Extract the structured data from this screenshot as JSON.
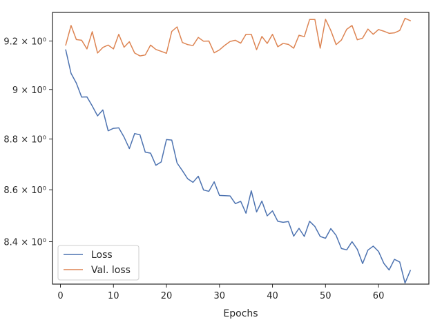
{
  "chart_data": {
    "type": "line",
    "title": "",
    "xlabel": "Epochs",
    "ylabel": "",
    "yscale": "log",
    "xlim": [
      -1.5,
      69.5
    ],
    "ylim": [
      8.24,
      9.32
    ],
    "grid": false,
    "legend_position": "lower-left",
    "x_ticks": [
      0,
      10,
      20,
      30,
      40,
      50,
      60
    ],
    "x_tick_labels": [
      "0",
      "10",
      "20",
      "30",
      "40",
      "50",
      "60"
    ],
    "y_ticks": [
      8.4,
      8.6,
      8.8,
      9.0,
      9.2
    ],
    "y_tick_labels": [
      "8.4 × 10⁰",
      "8.6 × 10⁰",
      "8.8 × 10⁰",
      "9 × 10⁰",
      "9.2 × 10⁰"
    ],
    "x": [
      1,
      2,
      3,
      4,
      5,
      6,
      7,
      8,
      9,
      10,
      11,
      12,
      13,
      14,
      15,
      16,
      17,
      18,
      19,
      20,
      21,
      22,
      23,
      24,
      25,
      26,
      27,
      28,
      29,
      30,
      31,
      32,
      33,
      34,
      35,
      36,
      37,
      38,
      39,
      40,
      41,
      42,
      43,
      44,
      45,
      46,
      47,
      48,
      49,
      50,
      51,
      52,
      53,
      54,
      55,
      56,
      57,
      58,
      59,
      60,
      61,
      62,
      63,
      64,
      65,
      66
    ],
    "series": [
      {
        "name": "Loss",
        "color": "#4c72b0",
        "values": [
          9.163,
          9.066,
          9.026,
          8.969,
          8.97,
          8.933,
          8.893,
          8.917,
          8.833,
          8.843,
          8.845,
          8.808,
          8.762,
          8.822,
          8.817,
          8.748,
          8.744,
          8.696,
          8.709,
          8.798,
          8.796,
          8.705,
          8.675,
          8.643,
          8.629,
          8.653,
          8.599,
          8.594,
          8.631,
          8.578,
          8.577,
          8.576,
          8.546,
          8.555,
          8.509,
          8.596,
          8.514,
          8.556,
          8.499,
          8.518,
          8.478,
          8.474,
          8.477,
          8.421,
          8.451,
          8.42,
          8.478,
          8.458,
          8.42,
          8.413,
          8.45,
          8.424,
          8.374,
          8.369,
          8.4,
          8.371,
          8.317,
          8.368,
          8.383,
          8.363,
          8.318,
          8.293,
          8.333,
          8.323,
          8.244,
          8.291
        ]
      },
      {
        "name": "Val. loss",
        "color": "#dd8452",
        "values": [
          9.183,
          9.265,
          9.206,
          9.203,
          9.167,
          9.239,
          9.15,
          9.173,
          9.183,
          9.167,
          9.228,
          9.174,
          9.197,
          9.15,
          9.138,
          9.142,
          9.183,
          9.165,
          9.157,
          9.149,
          9.24,
          9.259,
          9.194,
          9.185,
          9.181,
          9.215,
          9.199,
          9.2,
          9.151,
          9.163,
          9.182,
          9.198,
          9.203,
          9.191,
          9.228,
          9.228,
          9.164,
          9.219,
          9.19,
          9.228,
          9.176,
          9.19,
          9.186,
          9.17,
          9.224,
          9.218,
          9.29,
          9.29,
          9.17,
          9.291,
          9.244,
          9.185,
          9.204,
          9.249,
          9.265,
          9.205,
          9.212,
          9.25,
          9.228,
          9.248,
          9.241,
          9.232,
          9.234,
          9.244,
          9.295,
          9.285
        ]
      }
    ]
  }
}
